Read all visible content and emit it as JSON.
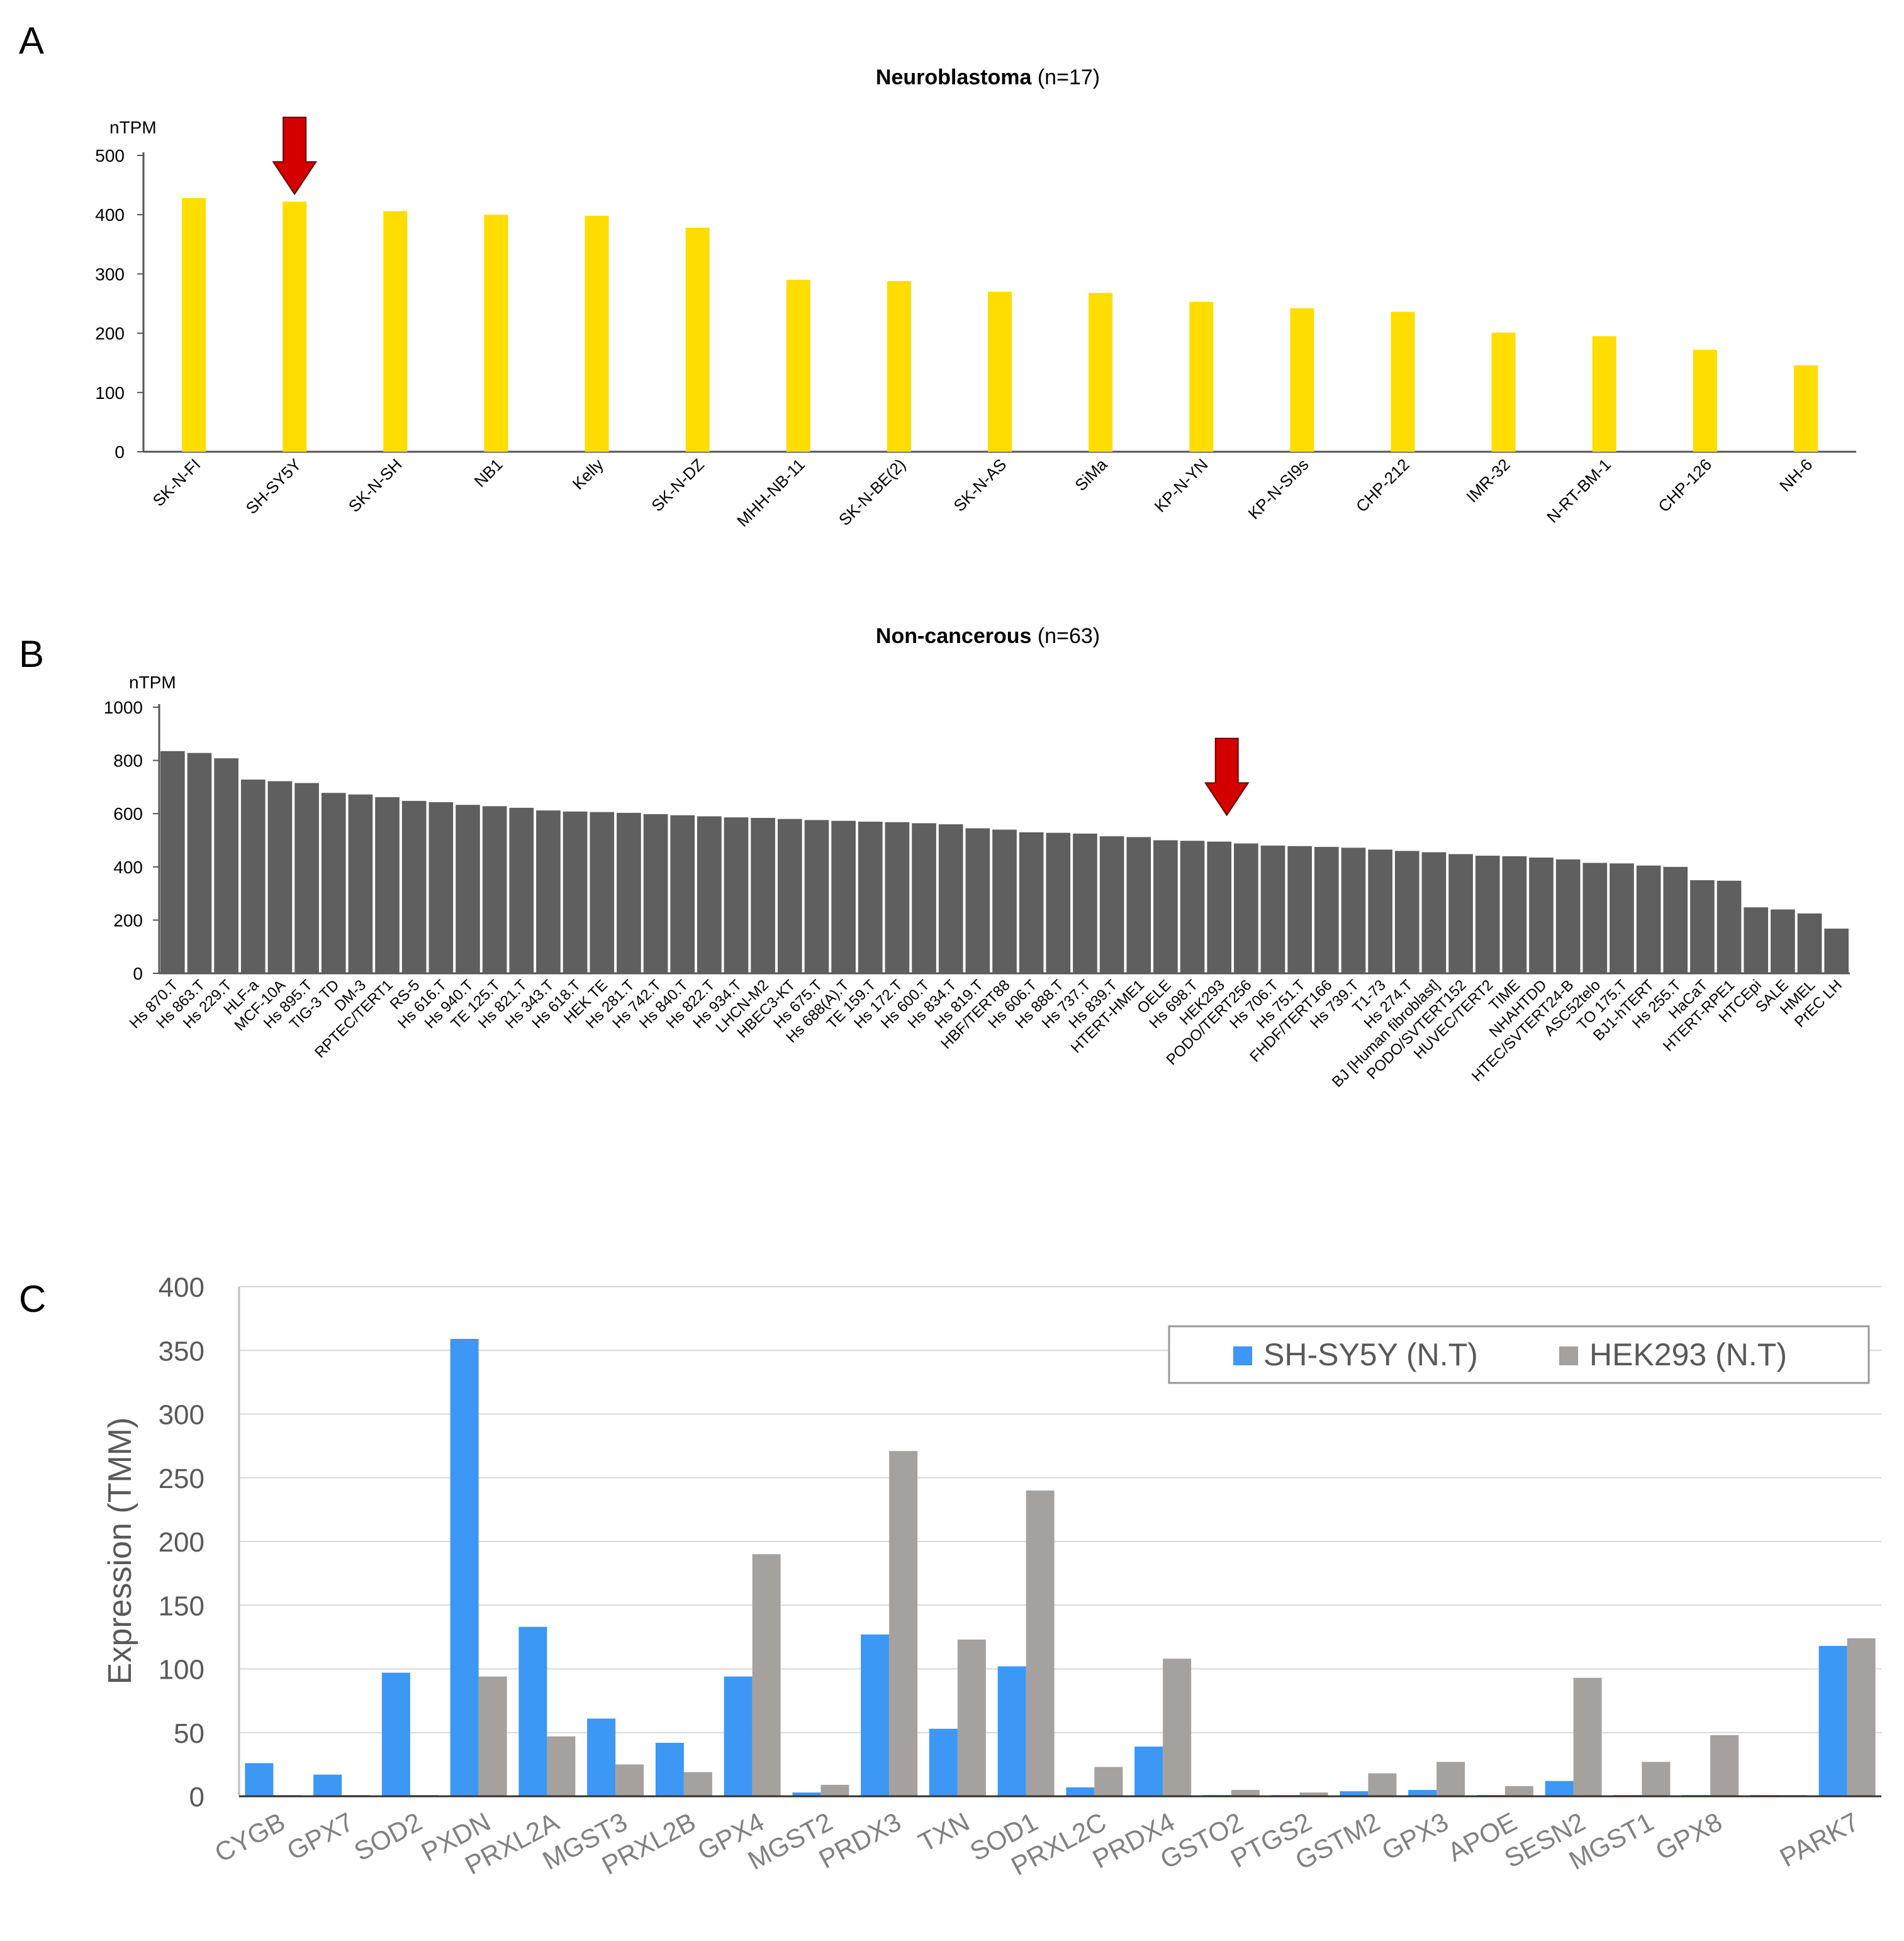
{
  "panel_labels": [
    "A",
    "B",
    "C"
  ],
  "colors": {
    "neuroblastoma_bar": "#FFDD00",
    "noncancer_bar": "#5F5F5F",
    "sh_sy5y": "#3D97F4",
    "hek293": "#A5A19F",
    "arrow": "#D40000"
  },
  "chart_data": [
    {
      "panel": "A",
      "type": "bar",
      "title": "Neuroblastoma",
      "title_suffix": " (n=17)",
      "ylabel": "nTPM",
      "ylim": [
        0,
        500
      ],
      "yticks": [
        "0",
        "100",
        "200",
        "300",
        "400",
        "500"
      ],
      "highlight": "SH-SY5Y",
      "categories": [
        "SK-N-FI",
        "SH-SY5Y",
        "SK-N-SH",
        "NB1",
        "Kelly",
        "SK-N-DZ",
        "MHH-NB-11",
        "SK-N-BE(2)",
        "SK-N-AS",
        "SiMa",
        "KP-N-YN",
        "KP-N-SI9s",
        "CHP-212",
        "IMR-32",
        "N-RT-BM-1",
        "CHP-126",
        "NH-6"
      ],
      "values": [
        428,
        422,
        406,
        400,
        398,
        378,
        290,
        288,
        270,
        268,
        253,
        242,
        236,
        201,
        195,
        172,
        146
      ]
    },
    {
      "panel": "B",
      "type": "bar",
      "title": "Non-cancerous",
      "title_suffix": " (n=63)",
      "ylabel": "nTPM",
      "ylim": [
        0,
        1000
      ],
      "yticks": [
        "0",
        "200",
        "400",
        "600",
        "800",
        "1000"
      ],
      "highlight": "HEK293",
      "categories": [
        "Hs 870.T",
        "Hs 863.T",
        "Hs 229.T",
        "HLF-a",
        "MCF-10A",
        "Hs 895.T",
        "TIG-3 TD",
        "DM-3",
        "RPTEC/TERT1",
        "RS-5",
        "Hs 616.T",
        "Hs 940.T",
        "TE 125.T",
        "Hs 821.T",
        "Hs 343.T",
        "Hs 618.T",
        "HEK TE",
        "Hs 281.T",
        "Hs 742.T",
        "Hs 840.T",
        "Hs 822.T",
        "Hs 934.T",
        "LHCN-M2",
        "HBEC3-KT",
        "Hs 675.T",
        "Hs 688(A).T",
        "TE 159.T",
        "Hs 172.T",
        "Hs 600.T",
        "Hs 834.T",
        "Hs 819.T",
        "HBF/TERT88",
        "Hs 606.T",
        "Hs 888.T",
        "Hs 737.T",
        "Hs 839.T",
        "HTERT-HME1",
        "OELE",
        "Hs 698.T",
        "HEK293",
        "PODO/TERT256",
        "Hs 706.T",
        "Hs 751.T",
        "FHDF/TERT166",
        "Hs 739.T",
        "T1-73",
        "Hs 274.T",
        "BJ [Human fibroblast]",
        "PODO/SVTERT152",
        "HUVEC/TERT2",
        "TIME",
        "NHAHTDD",
        "HTEC/SVTERT24-B",
        "ASC52telo",
        "TO 175.T",
        "BJ1-hTERT",
        "Hs 255.T",
        "HaCaT",
        "HTERT-RPE1",
        "HTCEpi",
        "SALE",
        "HMEL",
        "PrEC LH"
      ],
      "values": [
        835,
        828,
        808,
        728,
        722,
        715,
        678,
        672,
        662,
        648,
        643,
        633,
        628,
        622,
        612,
        608,
        606,
        603,
        598,
        594,
        590,
        586,
        584,
        580,
        576,
        573,
        570,
        568,
        564,
        560,
        545,
        540,
        530,
        528,
        525,
        515,
        512,
        500,
        498,
        495,
        488,
        480,
        478,
        475,
        472,
        465,
        460,
        455,
        448,
        442,
        440,
        435,
        428,
        415,
        413,
        405,
        400,
        350,
        348,
        248,
        240,
        225,
        168
      ]
    },
    {
      "panel": "C",
      "type": "bar",
      "ylabel": "Expression (TMM)",
      "ylim": [
        0,
        400
      ],
      "yticks": [
        "0",
        "50",
        "100",
        "150",
        "200",
        "250",
        "300",
        "350",
        "400"
      ],
      "legend_position": "top-right",
      "categories": [
        "CYGB",
        "GPX7",
        "SOD2",
        "PXDN",
        "PRXL2A",
        "MGST3",
        "PRXL2B",
        "GPX4",
        "MGST2",
        "PRDX3",
        "TXN",
        "SOD1",
        "PRXL2C",
        "PRDX4",
        "GSTO2",
        "PTGS2",
        "GSTM2",
        "GPX3",
        "APOE",
        "SESN2",
        "MGST1",
        "GPX8",
        "",
        "PARK7"
      ],
      "series": [
        {
          "name": "SH-SY5Y (N.T)",
          "values": [
            26,
            17,
            97,
            359,
            133,
            61,
            42,
            94,
            3,
            127,
            53,
            102,
            7,
            39,
            1,
            1,
            4,
            5,
            1,
            12,
            1,
            1,
            1,
            118
          ]
        },
        {
          "name": "HEK293 (N.T)",
          "values": [
            1,
            1,
            1,
            94,
            47,
            25,
            19,
            190,
            9,
            271,
            123,
            240,
            23,
            108,
            5,
            3,
            18,
            27,
            8,
            93,
            27,
            48,
            1,
            124
          ]
        }
      ]
    }
  ]
}
